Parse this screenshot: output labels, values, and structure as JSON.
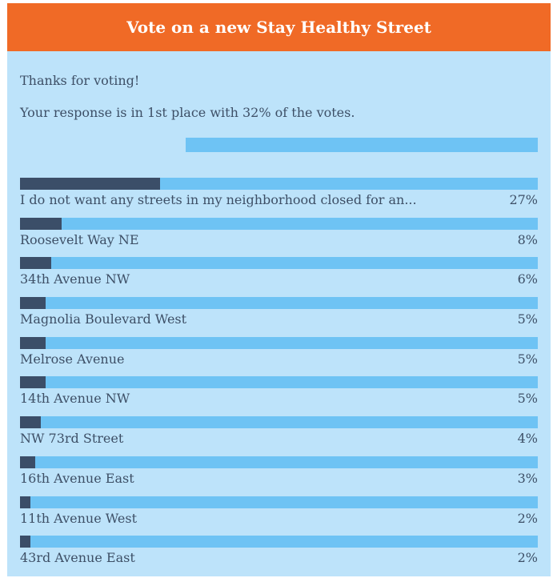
{
  "header": {
    "title": "Vote on a new Stay Healthy Street"
  },
  "message": {
    "thanks": "Thanks for voting!",
    "status": "Your response is in 1st place with 32% of the votes."
  },
  "user_response": {
    "share": 0.32
  },
  "results": [
    {
      "label": "I do not want any streets in my neighborhood closed for an...",
      "percent_label": "27%",
      "share": 0.27
    },
    {
      "label": "Roosevelt Way NE",
      "percent_label": "8%",
      "share": 0.08
    },
    {
      "label": "34th Avenue NW",
      "percent_label": "6%",
      "share": 0.06
    },
    {
      "label": "Magnolia Boulevard West",
      "percent_label": "5%",
      "share": 0.05
    },
    {
      "label": "Melrose Avenue",
      "percent_label": "5%",
      "share": 0.05
    },
    {
      "label": "14th Avenue NW",
      "percent_label": "5%",
      "share": 0.05
    },
    {
      "label": "NW 73rd Street",
      "percent_label": "4%",
      "share": 0.04
    },
    {
      "label": "16th Avenue East",
      "percent_label": "3%",
      "share": 0.03
    },
    {
      "label": "11th Avenue West",
      "percent_label": "2%",
      "share": 0.02
    },
    {
      "label": "43rd Avenue East",
      "percent_label": "2%",
      "share": 0.02
    }
  ],
  "colors": {
    "header": "#f06a26",
    "panel": "#bde3fa",
    "bar_track": "#6ec3f4",
    "bar_fill": "#3b4e68",
    "text": "#3d4f66"
  }
}
